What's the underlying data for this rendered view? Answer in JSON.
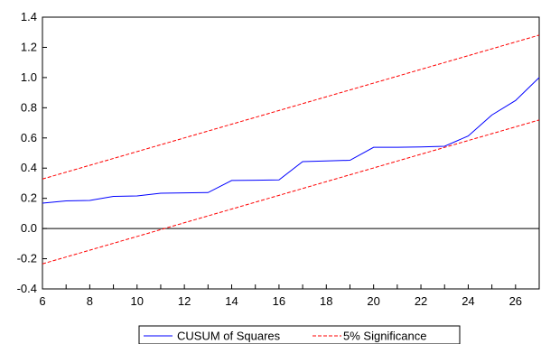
{
  "chart_data": {
    "type": "line",
    "title": "",
    "xlabel": "",
    "ylabel": "",
    "xlim": [
      6,
      27
    ],
    "ylim": [
      -0.4,
      1.4
    ],
    "x_ticks": [
      6,
      8,
      10,
      12,
      14,
      16,
      18,
      20,
      22,
      24,
      26
    ],
    "x_tick_labels": [
      "6",
      "8",
      "10",
      "12",
      "14",
      "16",
      "18",
      "20",
      "22",
      "24",
      "26"
    ],
    "y_ticks": [
      -0.4,
      -0.2,
      0.0,
      0.2,
      0.4,
      0.6,
      0.8,
      1.0,
      1.2,
      1.4
    ],
    "y_tick_labels": [
      "-0.4",
      "-0.2",
      "0.0",
      "0.2",
      "0.4",
      "0.6",
      "0.8",
      "1.0",
      "1.2",
      "1.4"
    ],
    "grid": false,
    "zero_line": true,
    "legend_position": "bottom",
    "series": [
      {
        "name": "CUSUM of Squares",
        "style": "solid",
        "color": "#0000ff",
        "x": [
          6,
          7,
          8,
          9,
          10,
          11,
          12,
          13,
          14,
          15,
          16,
          17,
          18,
          19,
          20,
          21,
          22,
          23,
          24,
          25,
          26,
          27
        ],
        "y": [
          0.168,
          0.183,
          0.186,
          0.213,
          0.216,
          0.234,
          0.236,
          0.238,
          0.318,
          0.32,
          0.322,
          0.443,
          0.448,
          0.452,
          0.538,
          0.538,
          0.54,
          0.545,
          0.613,
          0.752,
          0.848,
          1.0
        ]
      },
      {
        "name": "5% Significance",
        "style": "dashed",
        "color": "#ff0000",
        "x": [
          6,
          27
        ],
        "y": [
          0.328,
          1.281
        ]
      },
      {
        "name": "",
        "style": "dashed",
        "color": "#ff0000",
        "x": [
          6,
          27
        ],
        "y": [
          -0.234,
          0.719
        ]
      }
    ]
  }
}
